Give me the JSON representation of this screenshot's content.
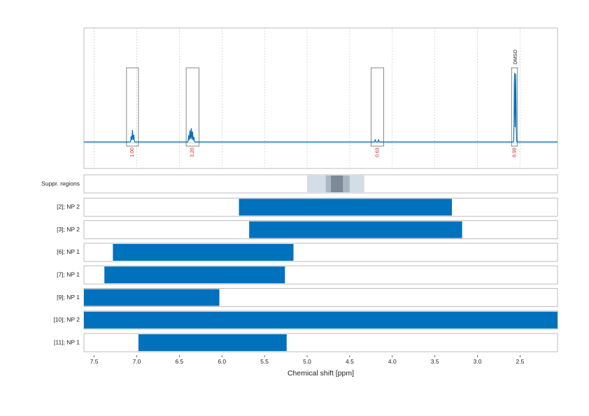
{
  "chart_data": {
    "type": "nmr-spectrum-with-range-bars",
    "x_axis": {
      "label": "Chemical shift [ppm]",
      "reversed": true,
      "range": [
        7.62,
        2.06
      ],
      "ticks": [
        "7.5",
        "7.0",
        "6.5",
        "6.0",
        "5.5",
        "5.0",
        "4.5",
        "4.0",
        "3.5",
        "3.0",
        "2.5"
      ],
      "grid": "dotted-vertical"
    },
    "spectrum": {
      "color": "#0071bc",
      "baseline_color": "#d0d0d0",
      "peaks": [
        {
          "ppm": 7.05,
          "height": 0.16
        },
        {
          "ppm": 7.035,
          "height": 0.1
        },
        {
          "ppm": 7.065,
          "height": 0.08
        },
        {
          "ppm": 6.36,
          "height": 0.2
        },
        {
          "ppm": 6.375,
          "height": 0.16
        },
        {
          "ppm": 6.345,
          "height": 0.14
        },
        {
          "ppm": 6.39,
          "height": 0.09
        },
        {
          "ppm": 6.33,
          "height": 0.07
        },
        {
          "ppm": 4.2,
          "height": 0.03
        },
        {
          "ppm": 4.16,
          "height": 0.03
        },
        {
          "ppm": 2.565,
          "height": 0.98
        },
        {
          "ppm": 2.55,
          "height": 0.92
        }
      ]
    },
    "integration_regions": [
      {
        "from": 7.12,
        "to": 6.98,
        "value": "1.00"
      },
      {
        "from": 6.42,
        "to": 6.27,
        "value": "3.20"
      },
      {
        "from": 4.25,
        "to": 4.1,
        "value": "0.63"
      },
      {
        "from": 2.6,
        "to": 2.53,
        "value": "6.99"
      }
    ],
    "peak_annotations": [
      {
        "ppm": 2.56,
        "label": "DMSO"
      }
    ],
    "suppression_regions": {
      "label": "Suppr. regions",
      "bands": [
        {
          "from": 5.0,
          "to": 4.33,
          "shade": "#d3dde6"
        },
        {
          "from": 4.78,
          "to": 4.5,
          "shade": "#a9b7c3"
        },
        {
          "from": 4.72,
          "to": 4.58,
          "shade": "#7b8a96"
        }
      ]
    },
    "series": [
      {
        "name": "[2]; NP 2",
        "from": 5.8,
        "to": 3.3
      },
      {
        "name": "[3]; NP 2",
        "from": 5.68,
        "to": 3.18
      },
      {
        "name": "[6]; NP 1",
        "from": 7.28,
        "to": 5.16
      },
      {
        "name": "[7]; NP 1",
        "from": 7.38,
        "to": 5.26
      },
      {
        "name": "[9]; NP 1",
        "from": 7.62,
        "to": 6.03
      },
      {
        "name": "[10]; NP 2",
        "from": 7.62,
        "to": 2.06
      },
      {
        "name": "[11]; NP 1",
        "from": 6.98,
        "to": 5.24
      }
    ],
    "bar_color": "#0071bc"
  }
}
